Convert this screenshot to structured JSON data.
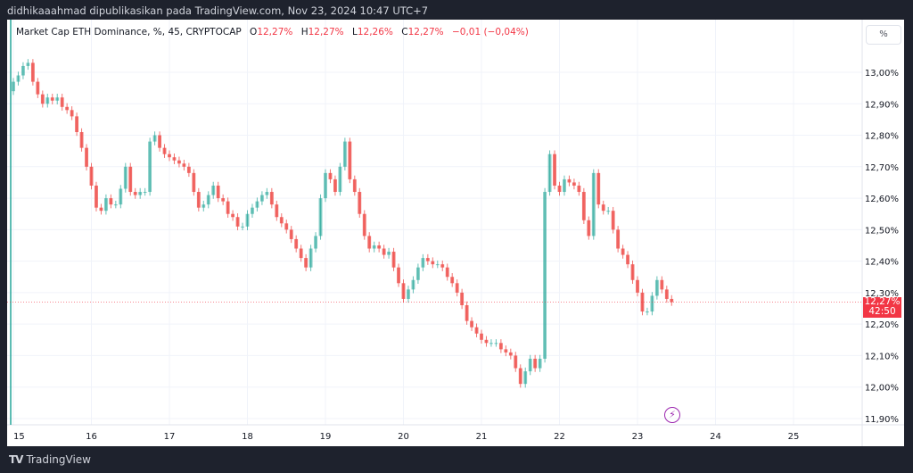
{
  "header": {
    "publish_line": "didhikaaahmad dipublikasikan pada TradingView.com, Nov 23, 2024 10:47 UTC+7"
  },
  "legend": {
    "symbol": "Market Cap ETH Dominance, %, 45, CRYPTOCAP",
    "open_label": "O",
    "open": "12,27%",
    "high_label": "H",
    "high": "12,27%",
    "low_label": "L",
    "low": "12,26%",
    "close_label": "C",
    "close": "12,27%",
    "change": "−0,01 (−0,04%)"
  },
  "price_axis": {
    "unit_button": "%",
    "last_price": "12,27%",
    "countdown": "42:50"
  },
  "footer": {
    "brand": "TradingView",
    "logo_text": "TV"
  },
  "colors": {
    "up": "#26a69a",
    "down": "#ef5350",
    "price_line": "#f23645",
    "event_icon": "#9c27b0"
  },
  "icons": {
    "event": "lightning-icon"
  },
  "chart_data": {
    "type": "candlestick",
    "interval": "45",
    "title": "Market Cap ETH Dominance, %, 45, CRYPTOCAP",
    "y_ticks": [
      "13,00%",
      "12,90%",
      "12,80%",
      "12,70%",
      "12,60%",
      "12,50%",
      "12,40%",
      "12,30%",
      "12,20%",
      "12,10%",
      "12,00%",
      "11,90%"
    ],
    "y_tick_values": [
      13.0,
      12.9,
      12.8,
      12.7,
      12.6,
      12.5,
      12.4,
      12.3,
      12.2,
      12.1,
      12.0,
      11.9
    ],
    "x_ticks": [
      "15",
      "16",
      "17",
      "18",
      "19",
      "20",
      "21",
      "22",
      "23",
      "24",
      "25"
    ],
    "x_tick_values": [
      15,
      16,
      17,
      18,
      19,
      20,
      21,
      22,
      23,
      24,
      25
    ],
    "ylim": [
      11.88,
      13.1
    ],
    "xlim": [
      14.93,
      25.9
    ],
    "grid": true,
    "last_price": 12.27,
    "start_day": 15,
    "approx_close_step_days": 0.0625,
    "closes": [
      12.97,
      12.99,
      13.02,
      13.03,
      12.97,
      12.93,
      12.9,
      12.92,
      12.91,
      12.92,
      12.89,
      12.88,
      12.86,
      12.81,
      12.76,
      12.7,
      12.64,
      12.57,
      12.56,
      12.6,
      12.58,
      12.58,
      12.63,
      12.7,
      12.62,
      12.61,
      12.62,
      12.62,
      12.78,
      12.8,
      12.76,
      12.74,
      12.73,
      12.72,
      12.71,
      12.7,
      12.68,
      12.62,
      12.57,
      12.58,
      12.61,
      12.64,
      12.6,
      12.59,
      12.55,
      12.54,
      12.51,
      12.51,
      12.55,
      12.57,
      12.59,
      12.61,
      12.62,
      12.58,
      12.54,
      12.52,
      12.5,
      12.47,
      12.44,
      12.41,
      12.38,
      12.44,
      12.48,
      12.6,
      12.68,
      12.66,
      12.62,
      12.7,
      12.78,
      12.66,
      12.62,
      12.55,
      12.48,
      12.44,
      12.45,
      12.44,
      12.42,
      12.43,
      12.38,
      12.33,
      12.28,
      12.31,
      12.34,
      12.38,
      12.41,
      12.4,
      12.39,
      12.39,
      12.38,
      12.35,
      12.33,
      12.3,
      12.26,
      12.21,
      12.19,
      12.17,
      12.15,
      12.14,
      12.14,
      12.14,
      12.12,
      12.11,
      12.1,
      12.06,
      12.01,
      12.05,
      12.09,
      12.06,
      12.09,
      12.62,
      12.74,
      12.64,
      12.62,
      12.66,
      12.65,
      12.64,
      12.62,
      12.53,
      12.48,
      12.68,
      12.58,
      12.56,
      12.56,
      12.5,
      12.44,
      12.42,
      12.39,
      12.34,
      12.3,
      12.24,
      12.24,
      12.29,
      12.34,
      12.31,
      12.28,
      12.27
    ]
  }
}
